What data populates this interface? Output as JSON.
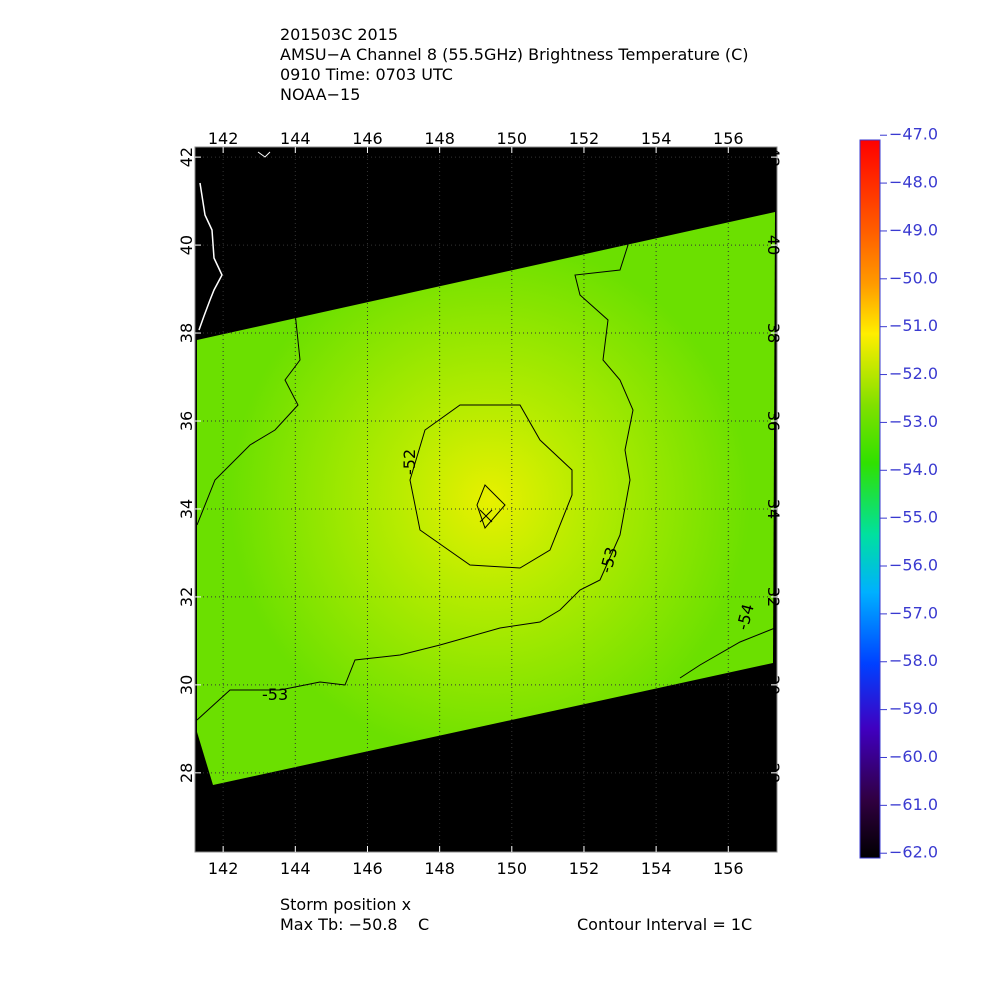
{
  "header": {
    "lines": [
      "201503C 2015",
      "AMSU−A Channel 8 (55.5GHz) Brightness Temperature (C)",
      "0910 Time: 0703 UTC",
      "NOAA−15"
    ]
  },
  "map": {
    "lonlim": [
      141.22,
      157.35
    ],
    "latlim": [
      42.23,
      26.2
    ],
    "lonticks": [
      142,
      144,
      146,
      148,
      150,
      152,
      154,
      156
    ],
    "latticks": [
      28,
      30,
      32,
      34,
      36,
      38,
      40,
      42
    ],
    "contour_labels": [
      "-52",
      "-53",
      "-53",
      "-54"
    ]
  },
  "colorbar": {
    "lim": [
      -47.1,
      -62.1
    ],
    "ticks": [
      {
        "value": -47,
        "label": "−47.0"
      },
      {
        "value": -48,
        "label": "−48.0"
      },
      {
        "value": -49,
        "label": "−49.0"
      },
      {
        "value": -50,
        "label": "−50.0"
      },
      {
        "value": -51,
        "label": "−51.0"
      },
      {
        "value": -52,
        "label": "−52.0"
      },
      {
        "value": -53,
        "label": "−53.0"
      },
      {
        "value": -54,
        "label": "−54.0"
      },
      {
        "value": -55,
        "label": "−55.0"
      },
      {
        "value": -56,
        "label": "−56.0"
      },
      {
        "value": -57,
        "label": "−57.0"
      },
      {
        "value": -58,
        "label": "−58.0"
      },
      {
        "value": -59,
        "label": "−59.0"
      },
      {
        "value": -60,
        "label": "−60.0"
      },
      {
        "value": -61,
        "label": "−61.0"
      },
      {
        "value": -62,
        "label": "−62.0"
      }
    ]
  },
  "footer": {
    "storm": "Storm position x",
    "max_tb": "Max Tb: −50.8    C",
    "interval": "Contour Interval = 1C"
  }
}
